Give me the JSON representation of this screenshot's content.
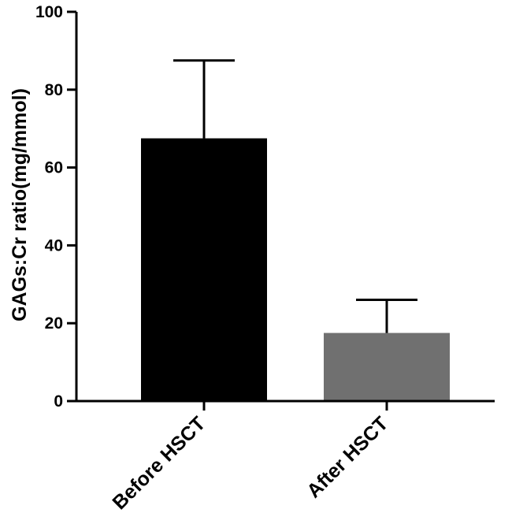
{
  "chart_data": {
    "type": "bar",
    "title": "",
    "xlabel": "",
    "ylabel": "GAGs:Cr ratio(mg/mmol)",
    "ylim": [
      0,
      100
    ],
    "yticks": [
      "0",
      "20",
      "40",
      "60",
      "80",
      "100"
    ],
    "categories": [
      "Before HSCT",
      "After HSCT"
    ],
    "values": [
      67.5,
      17.5
    ],
    "error_upper": [
      87.5,
      26
    ],
    "colors": [
      "#000000",
      "#707070"
    ],
    "grid": false,
    "legend": "none"
  }
}
